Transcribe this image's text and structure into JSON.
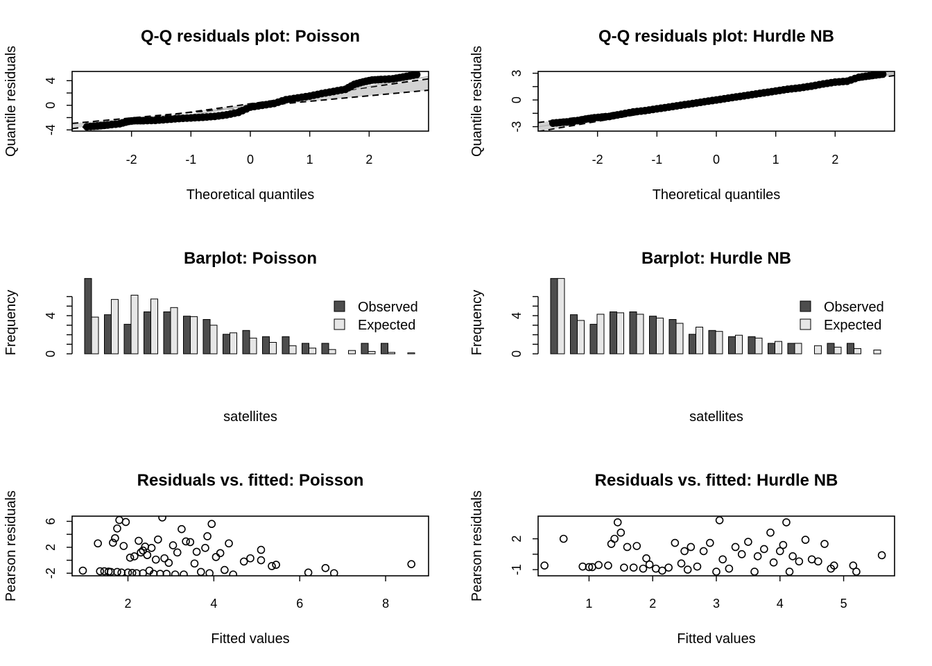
{
  "chart_data": [
    {
      "id": "qq_poisson",
      "type": "scatter",
      "title": "Q-Q residuals plot: Poisson",
      "xlabel": "Theoretical quantiles",
      "ylabel": "Quantile residuals",
      "xticks": [
        "-2",
        "-1",
        "0",
        "1",
        "2"
      ],
      "yticks": [
        "-4",
        "0",
        "4"
      ],
      "xlim": [
        -3.0,
        3.0
      ],
      "ylim": [
        -4.2,
        5.5
      ],
      "reference_line": {
        "intercept": 0.0,
        "slope": 1.55
      },
      "envelope": {
        "upper": {
          "intercept": 0.25,
          "slope": 1.35
        },
        "lower": {
          "intercept": -0.25,
          "slope": 0.9
        }
      },
      "points": [
        [
          -2.75,
          -3.5
        ],
        [
          -2.4,
          -3.2
        ],
        [
          -2.2,
          -3.0
        ],
        [
          -2.05,
          -2.6
        ],
        [
          -1.95,
          -2.5
        ],
        [
          -1.8,
          -2.5
        ],
        [
          -1.6,
          -2.45
        ],
        [
          -1.4,
          -2.3
        ],
        [
          -1.2,
          -2.15
        ],
        [
          -1.0,
          -2.05
        ],
        [
          -0.8,
          -1.95
        ],
        [
          -0.6,
          -1.8
        ],
        [
          -0.4,
          -1.55
        ],
        [
          -0.2,
          -1.15
        ],
        [
          0.0,
          -0.3
        ],
        [
          0.2,
          0.0
        ],
        [
          0.4,
          0.3
        ],
        [
          0.6,
          0.9
        ],
        [
          0.8,
          1.2
        ],
        [
          1.0,
          1.5
        ],
        [
          1.2,
          1.9
        ],
        [
          1.4,
          2.25
        ],
        [
          1.6,
          2.6
        ],
        [
          1.75,
          3.4
        ],
        [
          1.9,
          3.8
        ],
        [
          2.05,
          4.1
        ],
        [
          2.2,
          4.2
        ],
        [
          2.4,
          4.3
        ],
        [
          2.8,
          5.0
        ]
      ],
      "grid": false
    },
    {
      "id": "qq_hurdle",
      "type": "scatter",
      "title": "Q-Q residuals plot: Hurdle NB",
      "xlabel": "Theoretical quantiles",
      "ylabel": "Quantile residuals",
      "xticks": [
        "-2",
        "-1",
        "0",
        "1",
        "2"
      ],
      "yticks": [
        "-3",
        "0",
        "3"
      ],
      "xlim": [
        -3.0,
        3.0
      ],
      "ylim": [
        -3.5,
        3.2
      ],
      "reference_line": {
        "intercept": 0.0,
        "slope": 1.0
      },
      "envelope": {
        "upper": {
          "intercept": 0.1,
          "slope": 0.88
        },
        "lower": {
          "intercept": -0.1,
          "slope": 1.15
        }
      },
      "points": [
        [
          -2.75,
          -2.6
        ],
        [
          -2.4,
          -2.4
        ],
        [
          -2.2,
          -2.15
        ],
        [
          -2.05,
          -2.0
        ],
        [
          -1.8,
          -1.85
        ],
        [
          -1.6,
          -1.6
        ],
        [
          -1.4,
          -1.35
        ],
        [
          -1.2,
          -1.2
        ],
        [
          -1.0,
          -1.0
        ],
        [
          -0.8,
          -0.8
        ],
        [
          -0.6,
          -0.6
        ],
        [
          -0.4,
          -0.4
        ],
        [
          -0.2,
          -0.2
        ],
        [
          0.0,
          0.0
        ],
        [
          0.2,
          0.2
        ],
        [
          0.4,
          0.4
        ],
        [
          0.6,
          0.6
        ],
        [
          0.8,
          0.8
        ],
        [
          1.0,
          1.0
        ],
        [
          1.2,
          1.2
        ],
        [
          1.4,
          1.35
        ],
        [
          1.6,
          1.55
        ],
        [
          1.8,
          1.8
        ],
        [
          2.0,
          2.0
        ],
        [
          2.2,
          2.1
        ],
        [
          2.4,
          2.55
        ],
        [
          2.8,
          2.9
        ]
      ],
      "grid": false
    },
    {
      "id": "bar_poisson",
      "type": "bar",
      "title": "Barplot: Poisson",
      "xlabel": "satellites",
      "ylabel": "Frequency",
      "yticks": [
        "0",
        "4"
      ],
      "ylim": [
        0,
        8
      ],
      "legend": {
        "position": "top-right",
        "labels": [
          "Observed",
          "Expected"
        ]
      },
      "colors": {
        "observed": "#4d4d4d",
        "expected": "#e6e6e6"
      },
      "series": [
        {
          "name": "Observed",
          "values": [
            7.9,
            4.1,
            3.1,
            4.4,
            4.4,
            3.95,
            3.6,
            2.05,
            2.45,
            1.8,
            1.8,
            1.1,
            1.1,
            0.0,
            1.1,
            1.1,
            0.0
          ]
        },
        {
          "name": "Expected",
          "values": [
            3.85,
            5.7,
            6.15,
            5.75,
            4.85,
            3.9,
            3.0,
            2.2,
            1.65,
            1.2,
            0.85,
            0.6,
            0.45,
            0.35,
            0.25,
            0.15,
            0.1
          ]
        }
      ]
    },
    {
      "id": "bar_hurdle",
      "type": "bar",
      "title": "Barplot: Hurdle NB",
      "xlabel": "satellites",
      "ylabel": "Frequency",
      "yticks": [
        "0",
        "4"
      ],
      "ylim": [
        0,
        8
      ],
      "legend": {
        "position": "top-right",
        "labels": [
          "Observed",
          "Expected"
        ]
      },
      "colors": {
        "observed": "#4d4d4d",
        "expected": "#e6e6e6"
      },
      "series": [
        {
          "name": "Observed",
          "values": [
            7.9,
            4.1,
            3.1,
            4.4,
            4.4,
            3.95,
            3.6,
            2.05,
            2.45,
            1.8,
            1.8,
            1.1,
            1.1,
            0.0,
            1.1,
            1.1,
            0.0
          ]
        },
        {
          "name": "Expected",
          "values": [
            7.9,
            3.5,
            4.15,
            4.3,
            4.15,
            3.75,
            3.2,
            2.8,
            2.35,
            1.95,
            1.65,
            1.3,
            1.1,
            0.85,
            0.7,
            0.55,
            0.4
          ]
        }
      ]
    },
    {
      "id": "res_poisson",
      "type": "scatter",
      "title": "Residuals vs. fitted: Poisson",
      "xlabel": "Fitted values",
      "ylabel": "Pearson residuals",
      "xticks": [
        "2",
        "4",
        "6",
        "8"
      ],
      "yticks": [
        "-2",
        "2",
        "6"
      ],
      "xlim": [
        0.7,
        9.0
      ],
      "ylim": [
        -2.4,
        6.8
      ],
      "points": [
        [
          0.95,
          -1.6
        ],
        [
          1.3,
          2.6
        ],
        [
          1.35,
          -1.7
        ],
        [
          1.45,
          -1.7
        ],
        [
          1.55,
          -1.75
        ],
        [
          1.6,
          -1.8
        ],
        [
          1.65,
          2.7
        ],
        [
          1.7,
          3.4
        ],
        [
          1.75,
          -1.8
        ],
        [
          1.75,
          4.9
        ],
        [
          1.8,
          6.2
        ],
        [
          1.85,
          -1.9
        ],
        [
          1.9,
          2.2
        ],
        [
          1.95,
          5.9
        ],
        [
          2.0,
          -1.9
        ],
        [
          2.05,
          0.4
        ],
        [
          2.1,
          -1.95
        ],
        [
          2.15,
          0.6
        ],
        [
          2.2,
          -2.0
        ],
        [
          2.25,
          3.0
        ],
        [
          2.3,
          1.2
        ],
        [
          2.35,
          1.5
        ],
        [
          2.35,
          -2.0
        ],
        [
          2.4,
          2.1
        ],
        [
          2.45,
          0.8
        ],
        [
          2.5,
          -1.6
        ],
        [
          2.55,
          1.9
        ],
        [
          2.6,
          -2.1
        ],
        [
          2.65,
          0.1
        ],
        [
          2.7,
          3.2
        ],
        [
          2.75,
          -2.1
        ],
        [
          2.8,
          6.6
        ],
        [
          2.85,
          0.3
        ],
        [
          2.9,
          -2.1
        ],
        [
          2.95,
          -0.4
        ],
        [
          3.05,
          2.3
        ],
        [
          3.1,
          -2.2
        ],
        [
          3.15,
          1.2
        ],
        [
          3.25,
          4.8
        ],
        [
          3.3,
          -2.2
        ],
        [
          3.35,
          2.9
        ],
        [
          3.45,
          2.8
        ],
        [
          3.55,
          -0.5
        ],
        [
          3.6,
          1.3
        ],
        [
          3.7,
          -1.8
        ],
        [
          3.8,
          1.9
        ],
        [
          3.85,
          3.7
        ],
        [
          3.9,
          -2.0
        ],
        [
          3.95,
          5.6
        ],
        [
          4.05,
          0.5
        ],
        [
          4.15,
          1.1
        ],
        [
          4.25,
          -1.5
        ],
        [
          4.35,
          2.6
        ],
        [
          4.45,
          -2.2
        ],
        [
          4.7,
          -0.2
        ],
        [
          4.85,
          0.3
        ],
        [
          5.1,
          1.6
        ],
        [
          5.1,
          0.0
        ],
        [
          5.35,
          -0.9
        ],
        [
          5.45,
          -0.7
        ],
        [
          6.2,
          -1.9
        ],
        [
          6.6,
          -1.2
        ],
        [
          6.8,
          -2.0
        ],
        [
          8.6,
          -0.6
        ]
      ],
      "grid": false
    },
    {
      "id": "res_hurdle",
      "type": "scatter",
      "title": "Residuals vs. fitted: Hurdle NB",
      "xlabel": "Fitted values",
      "ylabel": "Pearson residuals",
      "xticks": [
        "1",
        "2",
        "3",
        "4",
        "5"
      ],
      "yticks": [
        "-1",
        "2"
      ],
      "xlim": [
        0.2,
        5.8
      ],
      "ylim": [
        -1.6,
        4.2
      ],
      "points": [
        [
          0.3,
          -0.6
        ],
        [
          0.6,
          2.0
        ],
        [
          0.9,
          -0.7
        ],
        [
          1.0,
          -0.75
        ],
        [
          1.05,
          -0.75
        ],
        [
          1.15,
          -0.55
        ],
        [
          1.3,
          -0.6
        ],
        [
          1.35,
          1.5
        ],
        [
          1.4,
          2.0
        ],
        [
          1.45,
          3.6
        ],
        [
          1.5,
          2.6
        ],
        [
          1.55,
          -0.8
        ],
        [
          1.6,
          1.2
        ],
        [
          1.7,
          -0.8
        ],
        [
          1.75,
          1.3
        ],
        [
          1.85,
          -0.9
        ],
        [
          1.9,
          0.1
        ],
        [
          1.95,
          -0.5
        ],
        [
          2.05,
          -0.9
        ],
        [
          2.15,
          -1.1
        ],
        [
          2.25,
          -0.8
        ],
        [
          2.35,
          1.6
        ],
        [
          2.45,
          -0.4
        ],
        [
          2.5,
          0.8
        ],
        [
          2.55,
          -1.0
        ],
        [
          2.6,
          1.2
        ],
        [
          2.7,
          -0.7
        ],
        [
          2.8,
          0.8
        ],
        [
          2.9,
          1.6
        ],
        [
          3.0,
          -1.2
        ],
        [
          3.05,
          3.8
        ],
        [
          3.1,
          0.0
        ],
        [
          3.2,
          -0.9
        ],
        [
          3.3,
          1.2
        ],
        [
          3.4,
          0.5
        ],
        [
          3.5,
          1.7
        ],
        [
          3.6,
          -1.2
        ],
        [
          3.65,
          0.3
        ],
        [
          3.75,
          1.0
        ],
        [
          3.85,
          2.6
        ],
        [
          3.9,
          -0.3
        ],
        [
          4.0,
          0.8
        ],
        [
          4.05,
          1.4
        ],
        [
          4.1,
          3.6
        ],
        [
          4.15,
          -1.2
        ],
        [
          4.2,
          0.3
        ],
        [
          4.3,
          -0.2
        ],
        [
          4.4,
          1.9
        ],
        [
          4.5,
          0.0
        ],
        [
          4.6,
          -0.2
        ],
        [
          4.7,
          1.5
        ],
        [
          4.8,
          -0.9
        ],
        [
          4.85,
          -0.6
        ],
        [
          5.15,
          -0.6
        ],
        [
          5.2,
          -1.2
        ],
        [
          5.6,
          0.4
        ]
      ],
      "grid": false
    }
  ]
}
